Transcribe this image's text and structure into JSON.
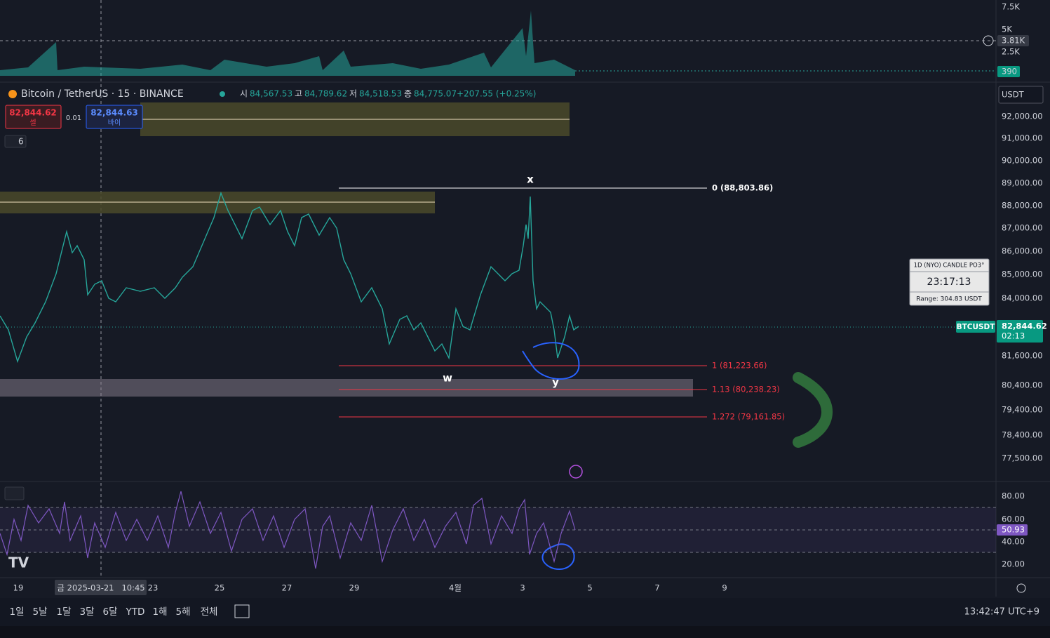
{
  "volume_axis": [
    "7.5K",
    "5K",
    "3.81K",
    "2.5K",
    "390"
  ],
  "symbol": "Bitcoin / TetherUS · 15 · BINANCE",
  "ohlc": [
    {
      "label": "시",
      "value": "84,567.53"
    },
    {
      "label": "고",
      "value": "84,789.62"
    },
    {
      "label": "저",
      "value": "84,518.53"
    },
    {
      "label": "종",
      "value": "84,775.07"
    }
  ],
  "change": "+207.55 (+0.25%)",
  "sell": {
    "price": "82,844.62",
    "label": "셀"
  },
  "spread": "0.01",
  "buy": {
    "price": "82,844.63",
    "label": "바이"
  },
  "indicators_count": "6",
  "currency": "USDT",
  "price_axis": [
    "92,000.00",
    "91,000.00",
    "90,000.00",
    "89,000.00",
    "88,000.00",
    "87,000.00",
    "86,000.00",
    "85,000.00",
    "84,000.00",
    "81,600.00",
    "80,400.00",
    "79,400.00",
    "78,400.00",
    "77,500.00"
  ],
  "fib": [
    "0 (88,803.86)",
    "1 (81,223.66)",
    "1.13 (80,238.23)",
    "1.272 (79,161.85)"
  ],
  "waves": [
    "x",
    "w",
    "y"
  ],
  "candle_timer": {
    "title": "1D (NYO) CANDLE PO3°",
    "time": "23:17:13",
    "range": "Range: 304.83 USDT"
  },
  "last_price": {
    "symbol": "BTCUSDT",
    "price": "82,844.62",
    "countdown": "02:13"
  },
  "rsi_axis": [
    "80.00",
    "60.00",
    "40.00",
    "20.00"
  ],
  "rsi_value": "50.93",
  "time_axis": [
    "19",
    "23",
    "25",
    "27",
    "29",
    "4월",
    "3",
    "5",
    "7",
    "9"
  ],
  "crosshair_date": "금 2025-03-21   10:45",
  "ranges": [
    "1일",
    "5날",
    "1달",
    "3달",
    "6달",
    "YTD",
    "1해",
    "5해",
    "전체"
  ],
  "clock": "13:42:47 UTC+9"
}
